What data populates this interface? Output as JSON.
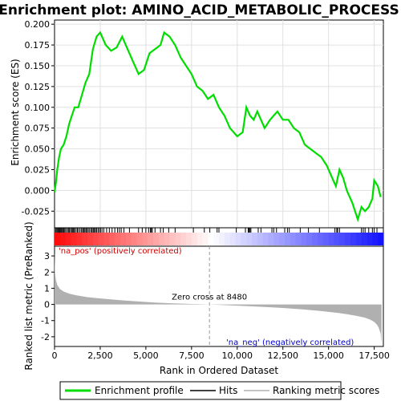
{
  "chart_data": [
    {
      "type": "line",
      "panel": "enrichment-profile",
      "title": "Enrichment plot: AMINO_ACID_METABOLIC_PROCESS",
      "ylabel": "Enrichment score (ES)",
      "xlim": [
        0,
        18000
      ],
      "ylim": [
        -0.045,
        0.205
      ],
      "yticks": [
        0.2,
        0.175,
        0.15,
        0.125,
        0.1,
        0.075,
        0.05,
        0.025,
        0.0,
        -0.025
      ],
      "ytick_labels": [
        "0.200",
        "0.175",
        "0.150",
        "0.125",
        "0.100",
        "0.075",
        "0.050",
        "0.025",
        "0.000",
        "-0.025"
      ],
      "grid": true,
      "series": [
        {
          "name": "Enrichment profile",
          "color": "#00dd00",
          "x": [
            0,
            80,
            150,
            250,
            350,
            500,
            650,
            800,
            950,
            1100,
            1300,
            1500,
            1700,
            1900,
            2100,
            2300,
            2500,
            2800,
            3100,
            3400,
            3700,
            4000,
            4300,
            4600,
            4900,
            5200,
            5500,
            5800,
            6000,
            6300,
            6600,
            6900,
            7200,
            7500,
            7800,
            8100,
            8400,
            8700,
            9000,
            9300,
            9600,
            10000,
            10300,
            10500,
            10700,
            10900,
            11100,
            11300,
            11500,
            11800,
            12000,
            12200,
            12500,
            12800,
            13100,
            13400,
            13700,
            14000,
            14300,
            14600,
            14900,
            15200,
            15400,
            15600,
            15800,
            16000,
            16300,
            16600,
            16800,
            17000,
            17200,
            17400,
            17500,
            17700,
            17850
          ],
          "y": [
            -0.002,
            0.01,
            0.025,
            0.04,
            0.05,
            0.055,
            0.065,
            0.08,
            0.09,
            0.1,
            0.1,
            0.115,
            0.13,
            0.14,
            0.17,
            0.185,
            0.19,
            0.175,
            0.168,
            0.172,
            0.185,
            0.17,
            0.155,
            0.14,
            0.145,
            0.165,
            0.17,
            0.175,
            0.19,
            0.185,
            0.175,
            0.16,
            0.15,
            0.14,
            0.125,
            0.12,
            0.11,
            0.115,
            0.1,
            0.09,
            0.075,
            0.065,
            0.07,
            0.1,
            0.09,
            0.085,
            0.095,
            0.085,
            0.075,
            0.085,
            0.09,
            0.095,
            0.085,
            0.085,
            0.075,
            0.07,
            0.055,
            0.05,
            0.045,
            0.04,
            0.03,
            0.015,
            0.005,
            0.025,
            0.015,
            0.0,
            -0.015,
            -0.035,
            -0.02,
            -0.025,
            -0.02,
            -0.01,
            0.012,
            0.005,
            -0.008
          ]
        }
      ]
    },
    {
      "type": "scatter",
      "panel": "hits",
      "series": [
        {
          "name": "Hits",
          "color": "#000000",
          "x": [
            60,
            120,
            170,
            210,
            260,
            300,
            350,
            400,
            450,
            500,
            560,
            620,
            700,
            760,
            820,
            880,
            950,
            1000,
            1050,
            1100,
            1180,
            1250,
            1320,
            1400,
            1480,
            1540,
            1600,
            1660,
            1720,
            1780,
            1850,
            1920,
            2000,
            2060,
            2120,
            2180,
            2240,
            2300,
            2380,
            2450,
            2520,
            2600,
            2700,
            2850,
            3000,
            3150,
            3300,
            3450,
            3550,
            3650,
            3800,
            4100,
            4600,
            4800,
            5000,
            5150,
            5250,
            5300,
            5350,
            5500,
            5800,
            5950,
            6250,
            6600,
            7600,
            8200,
            8500,
            8900,
            9000,
            9950,
            10450,
            10600,
            10650,
            10700,
            10750,
            11150,
            11300,
            11900,
            12000,
            12150,
            12600,
            12750,
            12850,
            13450,
            13900,
            14500,
            15350,
            15450,
            15500,
            15600,
            16800,
            16900,
            17000,
            17200,
            17400,
            17500,
            17650
          ]
        }
      ]
    },
    {
      "type": "area",
      "panel": "ranked-list-metric",
      "ylabel": "Ranked list metric (PreRanked)",
      "xlabel": "Rank in Ordered Dataset",
      "xlim": [
        0,
        18000
      ],
      "ylim": [
        -2.6,
        3.6
      ],
      "yticks": [
        3,
        2,
        1,
        0,
        -1,
        -2
      ],
      "ytick_labels": [
        "3",
        "2",
        "1",
        "0",
        "-1",
        "-2"
      ],
      "xticks": [
        0,
        2500,
        5000,
        7500,
        10000,
        12500,
        15000,
        17500
      ],
      "xtick_labels": [
        "0",
        "2,500",
        "5,000",
        "7,500",
        "10,000",
        "12,500",
        "15,000",
        "17,500"
      ],
      "zero_cross": 8480,
      "zero_cross_label": "Zero cross at 8480",
      "pos_label": "'na_pos' (positively correlated)",
      "neg_label": "'na_neg' (negatively correlated)",
      "series": [
        {
          "name": "Ranking metric scores",
          "color": "#b0b0b0",
          "x": [
            0,
            30,
            80,
            150,
            300,
            500,
            800,
            1200,
            1800,
            2500,
            3500,
            4500,
            5500,
            6500,
            7500,
            8480,
            9500,
            10500,
            11500,
            12500,
            13500,
            14500,
            15500,
            16000,
            16500,
            17000,
            17300,
            17500,
            17650,
            17750,
            17850,
            17900
          ],
          "y": [
            3.3,
            1.9,
            1.5,
            1.2,
            0.95,
            0.8,
            0.67,
            0.56,
            0.45,
            0.37,
            0.27,
            0.19,
            0.12,
            0.07,
            0.03,
            0.0,
            -0.05,
            -0.1,
            -0.16,
            -0.22,
            -0.3,
            -0.4,
            -0.52,
            -0.6,
            -0.7,
            -0.82,
            -0.95,
            -1.08,
            -1.25,
            -1.45,
            -1.8,
            -2.4
          ]
        }
      ]
    }
  ],
  "legend": {
    "items": [
      {
        "label": "Enrichment profile",
        "color": "#00dd00"
      },
      {
        "label": "Hits",
        "color": "#000000"
      },
      {
        "label": "Ranking metric scores",
        "color": "#b0b0b0"
      }
    ]
  },
  "colors": {
    "pos_label": "#cc0000",
    "neg_label": "#0000cc",
    "heat_pos": "#ff0000",
    "heat_neg": "#0000ff"
  }
}
